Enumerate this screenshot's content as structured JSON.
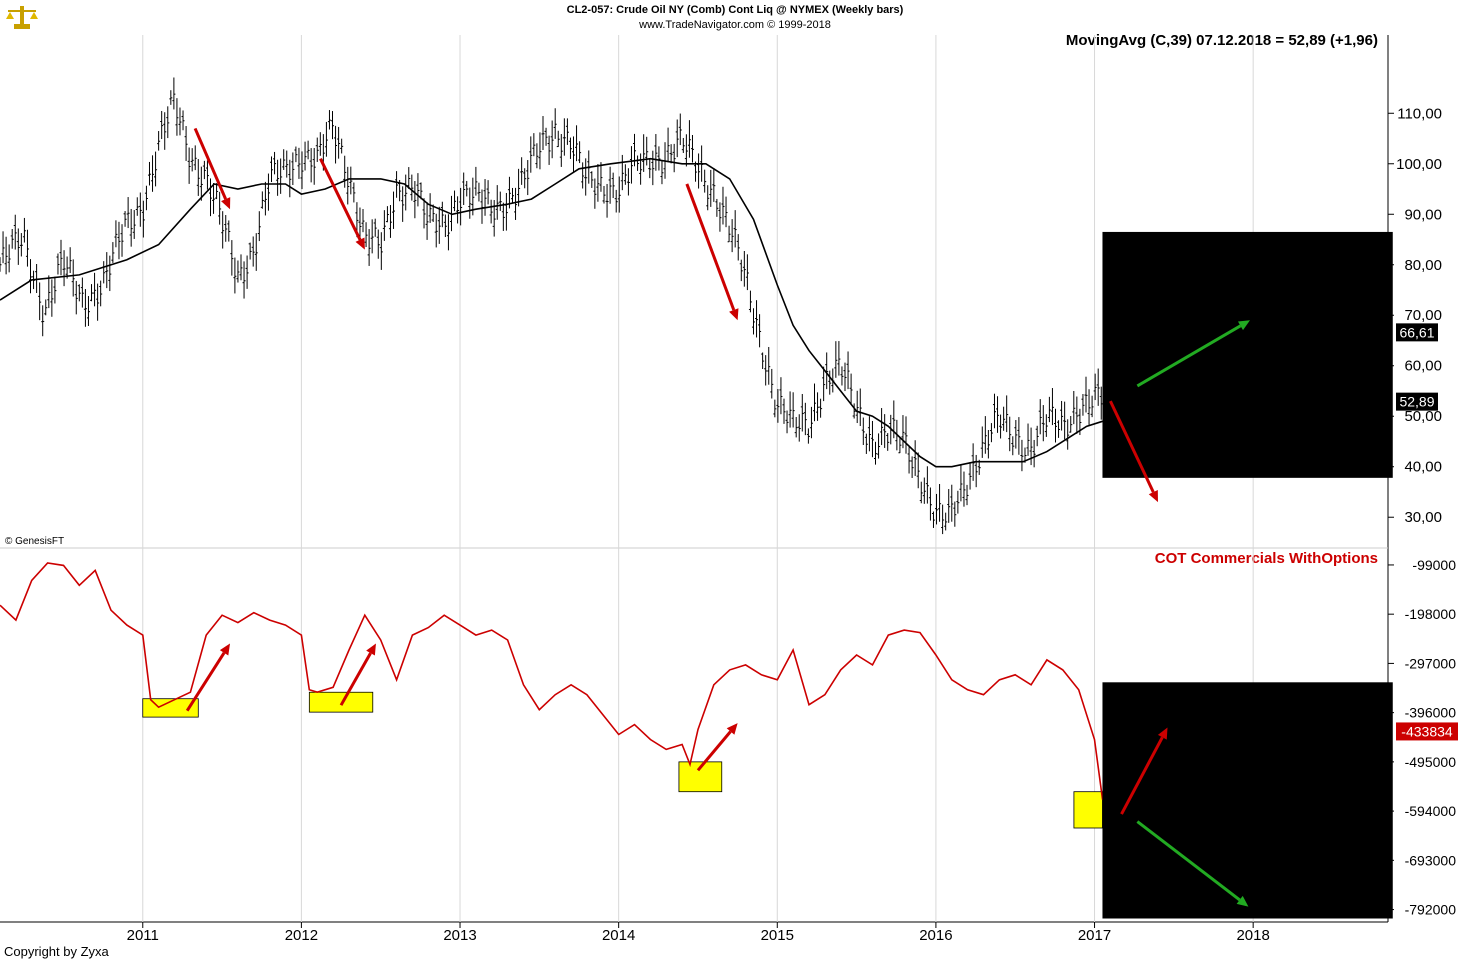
{
  "header": {
    "line1": "CL2-057:  Crude Oil NY (Comb) Cont Liq @ NYMEX  (Weekly bars)",
    "line2": "www.TradeNavigator.com © 1999-2018"
  },
  "copyright": "Copyright by Zyxa",
  "watermark": "© GenesisFT",
  "icon": "scales-logo-icon",
  "chart_data": [
    {
      "type": "ohlc_with_line",
      "indicator_label": "MovingAvg (C,39)  07.12.2018 = 52,89 (+1,96)",
      "y_axis": {
        "ticks": [
          "110,00",
          "100,00",
          "90,00",
          "80,00",
          "70,00",
          "60,00",
          "50,00",
          "40,00",
          "30,00"
        ],
        "tick_values": [
          110,
          100,
          90,
          80,
          70,
          60,
          50,
          40,
          30
        ],
        "range": [
          24.5,
          125.5
        ]
      },
      "price_labels": [
        {
          "text": "66,61",
          "value": 66.61
        },
        {
          "text": "52,89",
          "value": 52.89
        }
      ],
      "x_axis": {
        "ticks": [
          "2011",
          "2012",
          "2013",
          "2014",
          "2015",
          "2016",
          "2017",
          "2018"
        ],
        "tick_years": [
          2011,
          2012,
          2013,
          2014,
          2015,
          2016,
          2017,
          2018
        ],
        "range": [
          2010.1,
          2018.85
        ]
      },
      "price_anchors": [
        [
          2010.1,
          80
        ],
        [
          2010.25,
          85
        ],
        [
          2010.38,
          71
        ],
        [
          2010.5,
          80
        ],
        [
          2010.62,
          73
        ],
        [
          2010.75,
          76
        ],
        [
          2010.9,
          88
        ],
        [
          2011.0,
          92
        ],
        [
          2011.1,
          103
        ],
        [
          2011.2,
          112
        ],
        [
          2011.3,
          102
        ],
        [
          2011.4,
          97
        ],
        [
          2011.5,
          88
        ],
        [
          2011.6,
          78
        ],
        [
          2011.7,
          83
        ],
        [
          2011.8,
          96
        ],
        [
          2011.9,
          99
        ],
        [
          2012.0,
          102
        ],
        [
          2012.1,
          100
        ],
        [
          2012.2,
          107
        ],
        [
          2012.3,
          98
        ],
        [
          2012.4,
          85
        ],
        [
          2012.5,
          83
        ],
        [
          2012.6,
          95
        ],
        [
          2012.7,
          96
        ],
        [
          2012.8,
          88
        ],
        [
          2012.9,
          88
        ],
        [
          2013.0,
          94
        ],
        [
          2013.1,
          93
        ],
        [
          2013.2,
          91
        ],
        [
          2013.3,
          93
        ],
        [
          2013.4,
          96
        ],
        [
          2013.5,
          103
        ],
        [
          2013.6,
          107
        ],
        [
          2013.7,
          104
        ],
        [
          2013.8,
          96
        ],
        [
          2013.9,
          96
        ],
        [
          2014.0,
          95
        ],
        [
          2014.1,
          99
        ],
        [
          2014.2,
          101
        ],
        [
          2014.3,
          102
        ],
        [
          2014.4,
          104
        ],
        [
          2014.5,
          99
        ],
        [
          2014.6,
          95
        ],
        [
          2014.7,
          87
        ],
        [
          2014.8,
          77
        ],
        [
          2014.9,
          65
        ],
        [
          2015.0,
          52
        ],
        [
          2015.1,
          48
        ],
        [
          2015.2,
          49
        ],
        [
          2015.3,
          57
        ],
        [
          2015.4,
          59
        ],
        [
          2015.5,
          52
        ],
        [
          2015.6,
          45
        ],
        [
          2015.7,
          46
        ],
        [
          2015.8,
          45
        ],
        [
          2015.9,
          39
        ],
        [
          2016.0,
          30
        ],
        [
          2016.08,
          29
        ],
        [
          2016.2,
          38
        ],
        [
          2016.3,
          44
        ],
        [
          2016.4,
          49
        ],
        [
          2016.5,
          46
        ],
        [
          2016.6,
          44
        ],
        [
          2016.7,
          49
        ],
        [
          2016.8,
          48
        ],
        [
          2016.9,
          52
        ],
        [
          2017.0,
          53
        ],
        [
          2017.05,
          53
        ]
      ],
      "moving_average": [
        [
          2010.1,
          73
        ],
        [
          2010.3,
          77
        ],
        [
          2010.6,
          78
        ],
        [
          2010.9,
          81
        ],
        [
          2011.1,
          84
        ],
        [
          2011.3,
          91
        ],
        [
          2011.45,
          96
        ],
        [
          2011.6,
          95
        ],
        [
          2011.75,
          96
        ],
        [
          2011.9,
          96
        ],
        [
          2012.0,
          94
        ],
        [
          2012.15,
          95
        ],
        [
          2012.3,
          97
        ],
        [
          2012.5,
          97
        ],
        [
          2012.65,
          96
        ],
        [
          2012.8,
          92
        ],
        [
          2012.95,
          90
        ],
        [
          2013.1,
          91
        ],
        [
          2013.3,
          92
        ],
        [
          2013.45,
          93
        ],
        [
          2013.6,
          96
        ],
        [
          2013.75,
          99
        ],
        [
          2013.95,
          100
        ],
        [
          2014.2,
          101
        ],
        [
          2014.4,
          100
        ],
        [
          2014.55,
          100
        ],
        [
          2014.7,
          97
        ],
        [
          2014.85,
          89
        ],
        [
          2015.0,
          76
        ],
        [
          2015.1,
          68
        ],
        [
          2015.2,
          63
        ],
        [
          2015.3,
          59
        ],
        [
          2015.4,
          55
        ],
        [
          2015.5,
          51
        ],
        [
          2015.6,
          50
        ],
        [
          2015.7,
          48
        ],
        [
          2015.8,
          45
        ],
        [
          2015.9,
          42
        ],
        [
          2016.0,
          40
        ],
        [
          2016.1,
          40
        ],
        [
          2016.25,
          41
        ],
        [
          2016.4,
          41
        ],
        [
          2016.55,
          41
        ],
        [
          2016.7,
          43
        ],
        [
          2016.85,
          46
        ],
        [
          2016.95,
          48
        ],
        [
          2017.05,
          49
        ]
      ],
      "annotations": [
        {
          "kind": "arrow",
          "color": "#cc0000",
          "from": [
            2011.33,
            107
          ],
          "to": [
            2011.55,
            91
          ]
        },
        {
          "kind": "arrow",
          "color": "#cc0000",
          "from": [
            2012.12,
            101
          ],
          "to": [
            2012.4,
            83
          ]
        },
        {
          "kind": "arrow",
          "color": "#cc0000",
          "from": [
            2014.43,
            96
          ],
          "to": [
            2014.75,
            69
          ]
        },
        {
          "kind": "arrow",
          "color": "#cc0000",
          "from": [
            2017.1,
            53
          ],
          "to": [
            2017.4,
            33
          ]
        },
        {
          "kind": "arrow",
          "color": "#22aa22",
          "from": [
            2017.27,
            56
          ],
          "to": [
            2017.98,
            69
          ]
        },
        {
          "kind": "box",
          "color": "#000000",
          "x": [
            2017.05,
            2018.88
          ],
          "y": [
            37.8,
            86.5
          ]
        }
      ]
    },
    {
      "type": "line",
      "series_name": "COT Commercials WithOptions",
      "color": "#cc0000",
      "y_axis": {
        "ticks": [
          "-99000",
          "-198000",
          "-297000",
          "-396000",
          "-495000",
          "-594000",
          "-693000",
          "-792000"
        ],
        "tick_values": [
          -99000,
          -198000,
          -297000,
          -396000,
          -495000,
          -594000,
          -693000,
          -792000
        ],
        "range": [
          -813000,
          -79000
        ]
      },
      "value_label": {
        "text": "-433834",
        "value": -433834
      },
      "x_axis": {
        "range": [
          2010.1,
          2018.85
        ]
      },
      "points": [
        [
          2010.1,
          -180000
        ],
        [
          2010.2,
          -210000
        ],
        [
          2010.3,
          -130000
        ],
        [
          2010.4,
          -95000
        ],
        [
          2010.5,
          -100000
        ],
        [
          2010.6,
          -140000
        ],
        [
          2010.7,
          -110000
        ],
        [
          2010.8,
          -190000
        ],
        [
          2010.9,
          -220000
        ],
        [
          2011.0,
          -240000
        ],
        [
          2011.05,
          -370000
        ],
        [
          2011.1,
          -385000
        ],
        [
          2011.2,
          -370000
        ],
        [
          2011.3,
          -355000
        ],
        [
          2011.4,
          -240000
        ],
        [
          2011.5,
          -200000
        ],
        [
          2011.6,
          -215000
        ],
        [
          2011.7,
          -195000
        ],
        [
          2011.8,
          -210000
        ],
        [
          2011.9,
          -220000
        ],
        [
          2012.0,
          -240000
        ],
        [
          2012.05,
          -350000
        ],
        [
          2012.1,
          -355000
        ],
        [
          2012.2,
          -345000
        ],
        [
          2012.3,
          -270000
        ],
        [
          2012.4,
          -200000
        ],
        [
          2012.5,
          -250000
        ],
        [
          2012.6,
          -330000
        ],
        [
          2012.7,
          -240000
        ],
        [
          2012.8,
          -225000
        ],
        [
          2012.9,
          -200000
        ],
        [
          2013.0,
          -220000
        ],
        [
          2013.1,
          -240000
        ],
        [
          2013.2,
          -230000
        ],
        [
          2013.3,
          -250000
        ],
        [
          2013.4,
          -340000
        ],
        [
          2013.5,
          -390000
        ],
        [
          2013.6,
          -360000
        ],
        [
          2013.7,
          -340000
        ],
        [
          2013.8,
          -360000
        ],
        [
          2013.9,
          -400000
        ],
        [
          2014.0,
          -440000
        ],
        [
          2014.1,
          -420000
        ],
        [
          2014.2,
          -450000
        ],
        [
          2014.3,
          -470000
        ],
        [
          2014.4,
          -460000
        ],
        [
          2014.45,
          -500000
        ],
        [
          2014.5,
          -430000
        ],
        [
          2014.6,
          -340000
        ],
        [
          2014.7,
          -310000
        ],
        [
          2014.8,
          -300000
        ],
        [
          2014.9,
          -320000
        ],
        [
          2015.0,
          -330000
        ],
        [
          2015.1,
          -270000
        ],
        [
          2015.2,
          -380000
        ],
        [
          2015.3,
          -360000
        ],
        [
          2015.4,
          -310000
        ],
        [
          2015.5,
          -280000
        ],
        [
          2015.6,
          -300000
        ],
        [
          2015.7,
          -240000
        ],
        [
          2015.8,
          -230000
        ],
        [
          2015.9,
          -235000
        ],
        [
          2016.0,
          -280000
        ],
        [
          2016.1,
          -330000
        ],
        [
          2016.2,
          -350000
        ],
        [
          2016.3,
          -360000
        ],
        [
          2016.4,
          -330000
        ],
        [
          2016.5,
          -320000
        ],
        [
          2016.6,
          -340000
        ],
        [
          2016.7,
          -290000
        ],
        [
          2016.8,
          -310000
        ],
        [
          2016.9,
          -350000
        ],
        [
          2017.0,
          -450000
        ],
        [
          2017.05,
          -570000
        ],
        [
          2017.1,
          -580000
        ]
      ],
      "annotations": [
        {
          "kind": "box",
          "color": "#ffff00",
          "x": [
            2011.0,
            2011.35
          ],
          "y": [
            -368000,
            -405000
          ]
        },
        {
          "kind": "box",
          "color": "#ffff00",
          "x": [
            2012.05,
            2012.45
          ],
          "y": [
            -355000,
            -395000
          ]
        },
        {
          "kind": "box",
          "color": "#ffff00",
          "x": [
            2014.38,
            2014.65
          ],
          "y": [
            -495000,
            -555000
          ]
        },
        {
          "kind": "box",
          "color": "#ffff00",
          "x": [
            2016.87,
            2017.05
          ],
          "y": [
            -555000,
            -628000
          ]
        },
        {
          "kind": "arrow",
          "color": "#cc0000",
          "from": [
            2011.28,
            -392000
          ],
          "to": [
            2011.55,
            -257000
          ]
        },
        {
          "kind": "arrow",
          "color": "#cc0000",
          "from": [
            2012.25,
            -381000
          ],
          "to": [
            2012.47,
            -257000
          ]
        },
        {
          "kind": "arrow",
          "color": "#cc0000",
          "from": [
            2014.5,
            -512000
          ],
          "to": [
            2014.75,
            -417000
          ]
        },
        {
          "kind": "arrow",
          "color": "#cc0000",
          "from": [
            2017.17,
            -600000
          ],
          "to": [
            2017.46,
            -426000
          ]
        },
        {
          "kind": "arrow",
          "color": "#22aa22",
          "from": [
            2017.27,
            -615000
          ],
          "to": [
            2017.97,
            -786000
          ]
        },
        {
          "kind": "box",
          "color": "#000000",
          "x": [
            2017.05,
            2018.88
          ],
          "y": [
            -335000,
            -810000
          ]
        }
      ]
    }
  ]
}
